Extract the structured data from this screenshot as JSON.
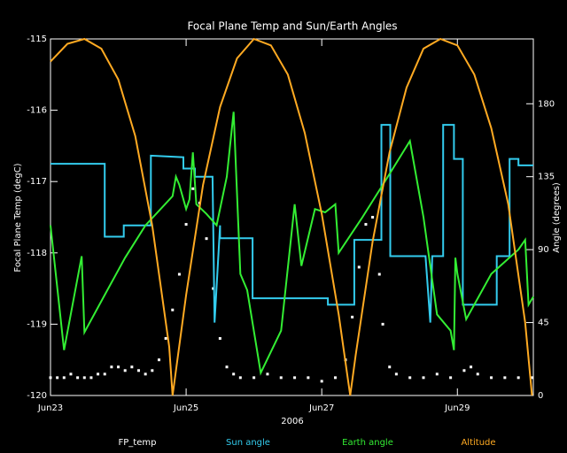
{
  "chart_data": {
    "type": "line",
    "title": "Focal Plane Temp and Sun/Earth Angles",
    "xlabel": "2006",
    "ylabel": "Focal Plane Temp (degC)",
    "y2label": "Angle (degrees)",
    "xlim": [
      0,
      7.12
    ],
    "xticks": [
      {
        "value": 0,
        "label": "Jun23"
      },
      {
        "value": 2,
        "label": "Jun25"
      },
      {
        "value": 4,
        "label": "Jun27"
      },
      {
        "value": 6,
        "label": "Jun29"
      }
    ],
    "ylim": [
      -120,
      -115
    ],
    "yticks": [
      -120,
      -119,
      -118,
      -117,
      -116,
      -115
    ],
    "y2lim": [
      0,
      220
    ],
    "y2ticks": [
      0,
      45,
      90,
      135,
      180
    ],
    "series": [
      {
        "name": "FP_temp",
        "color": "#ffffff",
        "mode": "markers",
        "x": [
          0,
          0.1,
          0.2,
          0.3,
          0.4,
          0.5,
          0.6,
          0.7,
          0.8,
          0.9,
          1.0,
          1.1,
          1.2,
          1.3,
          1.4,
          1.5,
          1.6,
          1.7,
          1.8,
          1.9,
          2.0,
          2.1,
          2.2,
          2.3,
          2.4,
          2.5,
          2.6,
          2.7,
          2.8,
          3.0,
          3.2,
          3.4,
          3.6,
          3.8,
          4.0,
          4.2,
          4.35,
          4.45,
          4.55,
          4.65,
          4.75,
          4.85,
          4.9,
          5.0,
          5.1,
          5.3,
          5.5,
          5.7,
          5.9,
          6.1,
          6.2,
          6.3,
          6.5,
          6.7,
          6.9,
          7.1
        ],
        "values": [
          -119.75,
          -119.75,
          -119.75,
          -119.7,
          -119.75,
          -119.75,
          -119.75,
          -119.7,
          -119.7,
          -119.6,
          -119.6,
          -119.65,
          -119.6,
          -119.65,
          -119.7,
          -119.65,
          -119.5,
          -119.2,
          -118.8,
          -118.3,
          -117.6,
          -117.1,
          -117.3,
          -117.8,
          -118.5,
          -119.2,
          -119.6,
          -119.7,
          -119.75,
          -119.75,
          -119.7,
          -119.75,
          -119.75,
          -119.75,
          -119.8,
          -119.75,
          -119.5,
          -118.9,
          -118.2,
          -117.6,
          -117.5,
          -118.3,
          -119.0,
          -119.6,
          -119.7,
          -119.75,
          -119.75,
          -119.7,
          -119.75,
          -119.65,
          -119.6,
          -119.7,
          -119.75,
          -119.75,
          -119.75,
          -119.75
        ]
      },
      {
        "name": "Sun angle",
        "color": "#33ccee",
        "mode": "lines",
        "axis": "y2",
        "x": [
          0,
          0.8,
          0.8,
          1.08,
          1.08,
          1.48,
          1.48,
          1.96,
          1.96,
          2.13,
          2.13,
          2.39,
          2.42,
          2.5,
          2.5,
          2.98,
          2.98,
          4.09,
          4.09,
          4.48,
          4.48,
          4.88,
          4.88,
          5.01,
          5.01,
          5.53,
          5.6,
          5.63,
          5.79,
          5.79,
          5.95,
          5.95,
          6.08,
          6.08,
          6.58,
          6.58,
          6.77,
          6.77,
          6.9,
          6.9,
          7.12
        ],
        "values": [
          143,
          143,
          98,
          98,
          105,
          105,
          148,
          147,
          140,
          140,
          135,
          135,
          45,
          105,
          97,
          97,
          60,
          60,
          56,
          56,
          96,
          96,
          167,
          167,
          86,
          86,
          45,
          86,
          86,
          167,
          167,
          146,
          146,
          56,
          56,
          86,
          86,
          146,
          146,
          142,
          142
        ]
      },
      {
        "name": "Earth angle",
        "color": "#33ee33",
        "mode": "lines",
        "axis": "y2",
        "x": [
          0,
          0.2,
          0.46,
          0.5,
          0.8,
          1.1,
          1.4,
          1.8,
          1.85,
          1.9,
          2.0,
          2.05,
          2.1,
          2.15,
          2.3,
          2.45,
          2.6,
          2.7,
          2.8,
          2.9,
          3.1,
          3.4,
          3.6,
          3.7,
          3.9,
          4.05,
          4.2,
          4.25,
          4.6,
          4.9,
          5.3,
          5.5,
          5.7,
          5.9,
          5.95,
          5.97,
          6.0,
          6.13,
          6.5,
          6.9,
          7.0,
          7.05,
          7.12
        ],
        "values": [
          105,
          28,
          86,
          39,
          62,
          85,
          105,
          123,
          135,
          130,
          115,
          121,
          150,
          118,
          112,
          105,
          135,
          175,
          75,
          65,
          14,
          40,
          118,
          80,
          115,
          113,
          118,
          88,
          110,
          130,
          157,
          110,
          50,
          40,
          28,
          85,
          75,
          47,
          75,
          90,
          96,
          56,
          61
        ]
      },
      {
        "name": "Altitude",
        "color": "#ffaa22",
        "mode": "lines",
        "axis": "y2",
        "x": [
          0,
          0.25,
          0.5,
          0.75,
          1.0,
          1.25,
          1.5,
          1.75,
          1.8,
          2.0,
          2.25,
          2.5,
          2.75,
          3.0,
          3.25,
          3.5,
          3.75,
          4.0,
          4.25,
          4.42,
          4.5,
          4.75,
          5.0,
          5.25,
          5.5,
          5.75,
          6.0,
          6.25,
          6.5,
          6.75,
          7.0,
          7.1
        ],
        "values": [
          206,
          217,
          220,
          214,
          195,
          160,
          105,
          30,
          0,
          62,
          130,
          178,
          208,
          220,
          216,
          198,
          162,
          112,
          50,
          0,
          25,
          95,
          150,
          190,
          214,
          220,
          216,
          198,
          165,
          118,
          45,
          0
        ]
      }
    ]
  }
}
